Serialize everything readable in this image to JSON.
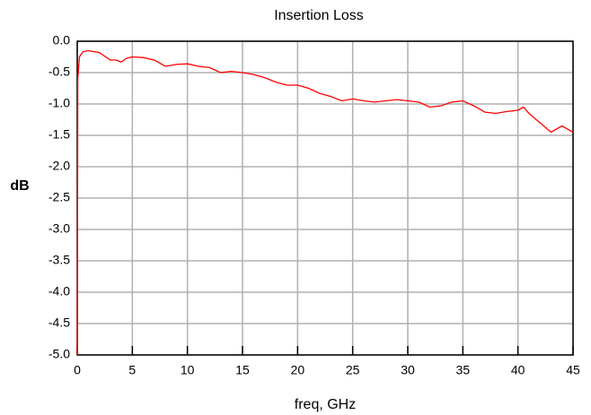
{
  "chart_data": {
    "type": "line",
    "title": "Insertion Loss",
    "x_label": "freq, GHz",
    "y_label": "dB",
    "x": [
      0,
      0.05,
      0.2,
      0.5,
      1,
      2,
      3,
      3.5,
      4,
      4.5,
      5,
      6,
      7,
      8,
      9,
      10,
      11,
      12,
      13,
      14,
      15,
      16,
      17,
      18,
      19,
      20,
      21,
      22,
      23,
      24,
      25,
      26,
      27,
      28,
      29,
      30,
      31,
      32,
      33,
      34,
      35,
      36,
      37,
      38,
      39,
      40,
      40.5,
      41,
      42,
      43,
      44,
      45
    ],
    "series": [
      {
        "name": "Insertion Loss",
        "color": "#ff0000",
        "values": [
          -5,
          -0.6,
          -0.25,
          -0.17,
          -0.15,
          -0.18,
          -0.3,
          -0.3,
          -0.33,
          -0.27,
          -0.25,
          -0.26,
          -0.3,
          -0.4,
          -0.37,
          -0.36,
          -0.4,
          -0.42,
          -0.5,
          -0.48,
          -0.5,
          -0.53,
          -0.58,
          -0.65,
          -0.7,
          -0.7,
          -0.75,
          -0.83,
          -0.88,
          -0.95,
          -0.92,
          -0.95,
          -0.97,
          -0.95,
          -0.93,
          -0.95,
          -0.97,
          -1.05,
          -1.03,
          -0.97,
          -0.95,
          -1.03,
          -1.13,
          -1.15,
          -1.12,
          -1.1,
          -1.05,
          -1.15,
          -1.3,
          -1.45,
          -1.35,
          -1.45
        ]
      }
    ],
    "xlim": [
      0,
      45
    ],
    "xticks": [
      0,
      5,
      10,
      15,
      20,
      25,
      30,
      35,
      40,
      45
    ],
    "ylim": [
      -5,
      0
    ],
    "yticks": [
      {
        "value": 0,
        "label": "0.0"
      },
      -0.5,
      {
        "value": -1,
        "label": "-1.0"
      },
      -1.5,
      {
        "value": -2,
        "label": "-2.0"
      },
      -2.5,
      {
        "value": -3,
        "label": "-3.0"
      },
      -3.5,
      {
        "value": -4,
        "label": "-4.0"
      },
      -4.5,
      {
        "value": -5,
        "label": "-5.0"
      }
    ],
    "grid": true
  }
}
